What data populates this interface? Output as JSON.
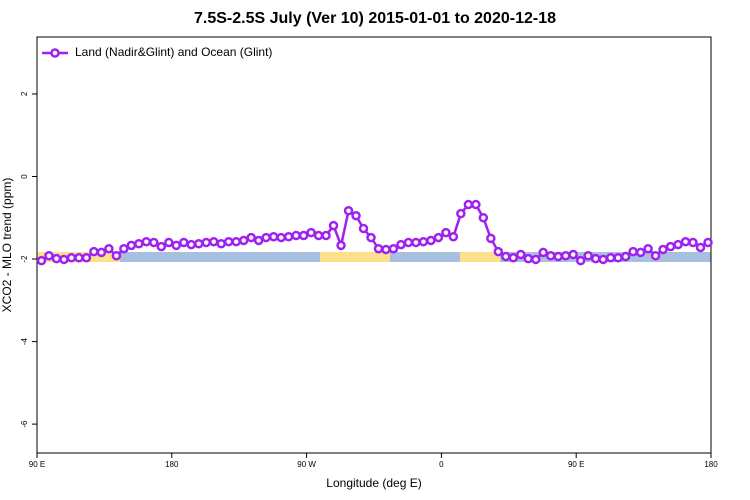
{
  "chart_data": {
    "type": "line",
    "title": "7.5S-2.5S July (Ver 10)   2015-01-01 to 2020-12-18",
    "x_label": "Longitude (deg E)",
    "y_label": "XCO2 - MLO trend (ppm)",
    "x": [
      93,
      98,
      103,
      108,
      113,
      118,
      123,
      128,
      133,
      138,
      143,
      148,
      153,
      158,
      163,
      168,
      173,
      178,
      183,
      188,
      193,
      198,
      203,
      208,
      213,
      218,
      223,
      228,
      233,
      238,
      243,
      248,
      253,
      258,
      263,
      268,
      273,
      278,
      283,
      288,
      293,
      298,
      303,
      308,
      313,
      318,
      323,
      328,
      333,
      338,
      343,
      348,
      353,
      358,
      363,
      368,
      373,
      378,
      383,
      388,
      393,
      398,
      403,
      408,
      413,
      418,
      423,
      428,
      433,
      438,
      443,
      448,
      453,
      458,
      463,
      468,
      473,
      478,
      483,
      488,
      493,
      498,
      503,
      508,
      513,
      518,
      523,
      528,
      533,
      538
    ],
    "series": [
      {
        "name": "Land (Nadir&Glint) and Ocean (Glint)",
        "color": "#a020f0",
        "values": [
          -2.04,
          -1.92,
          -1.99,
          -2.01,
          -1.97,
          -1.97,
          -1.97,
          -1.82,
          -1.84,
          -1.75,
          -1.92,
          -1.75,
          -1.67,
          -1.63,
          -1.58,
          -1.6,
          -1.7,
          -1.6,
          -1.67,
          -1.6,
          -1.65,
          -1.63,
          -1.6,
          -1.58,
          -1.63,
          -1.58,
          -1.58,
          -1.55,
          -1.48,
          -1.55,
          -1.48,
          -1.46,
          -1.48,
          -1.46,
          -1.43,
          -1.43,
          -1.36,
          -1.43,
          -1.43,
          -1.19,
          -1.67,
          -0.83,
          -0.95,
          -1.26,
          -1.48,
          -1.75,
          -1.77,
          -1.75,
          -1.65,
          -1.6,
          -1.6,
          -1.58,
          -1.55,
          -1.48,
          -1.36,
          -1.46,
          -0.9,
          -0.68,
          -0.68,
          -1.0,
          -1.5,
          -1.82,
          -1.94,
          -1.97,
          -1.89,
          -1.99,
          -2.01,
          -1.84,
          -1.92,
          -1.94,
          -1.92,
          -1.89,
          -2.04,
          -1.92,
          -1.99,
          -2.01,
          -1.97,
          -1.97,
          -1.94,
          -1.82,
          -1.84,
          -1.75,
          -1.92,
          -1.77,
          -1.7,
          -1.65,
          -1.58,
          -1.6,
          -1.72,
          -1.6
        ]
      }
    ],
    "xlim": [
      90,
      540
    ],
    "xticks": [
      {
        "value": 90,
        "label": "90 E"
      },
      {
        "value": 180,
        "label": "180"
      },
      {
        "value": 270,
        "label": "90 W"
      },
      {
        "value": 360,
        "label": "0"
      },
      {
        "value": 450,
        "label": "90 E"
      },
      {
        "value": 540,
        "label": "180"
      }
    ],
    "ylim": [
      -6.7,
      3.38
    ],
    "yticks": [
      -6,
      -4,
      -2,
      0,
      2
    ],
    "legend": "top-left"
  }
}
